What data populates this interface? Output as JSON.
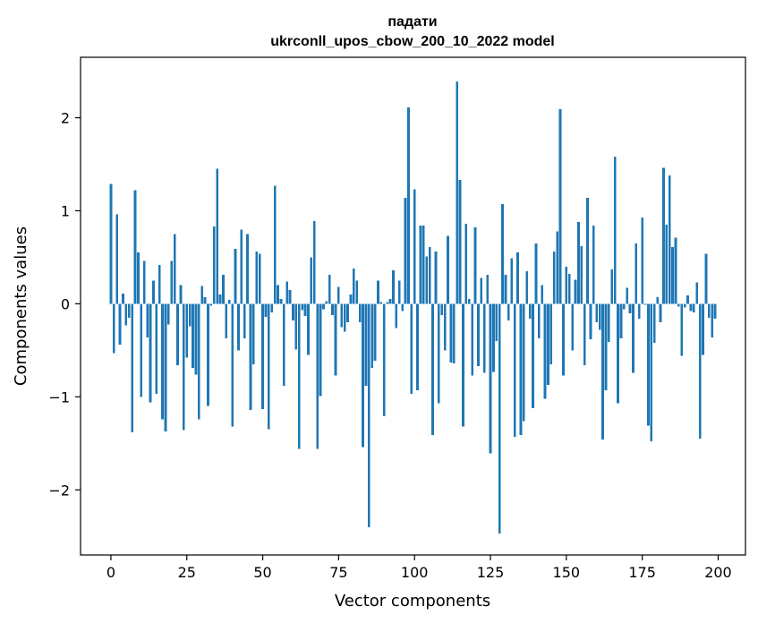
{
  "chart_data": {
    "type": "bar",
    "title": "падати",
    "subtitle": "ukrconll_upos_cbow_200_10_2022 model",
    "xlabel": "Vector components",
    "ylabel": "Components values",
    "xlim": [
      -10,
      209
    ],
    "ylim": [
      -2.7,
      2.65
    ],
    "xticks": [
      0,
      25,
      50,
      75,
      100,
      125,
      150,
      175,
      200
    ],
    "xtick_labels": [
      "0",
      "25",
      "50",
      "75",
      "100",
      "125",
      "150",
      "175",
      "200"
    ],
    "yticks": [
      -2,
      -1,
      0,
      1,
      2
    ],
    "ytick_labels": [
      "−2",
      "−1",
      "0",
      "1",
      "2"
    ],
    "grid": false,
    "bar_color": "#1f77b4",
    "x": [
      0,
      1,
      2,
      3,
      4,
      5,
      6,
      7,
      8,
      9,
      10,
      11,
      12,
      13,
      14,
      15,
      16,
      17,
      18,
      19,
      20,
      21,
      22,
      23,
      24,
      25,
      26,
      27,
      28,
      29,
      30,
      31,
      32,
      33,
      34,
      35,
      36,
      37,
      38,
      39,
      40,
      41,
      42,
      43,
      44,
      45,
      46,
      47,
      48,
      49,
      50,
      51,
      52,
      53,
      54,
      55,
      56,
      57,
      58,
      59,
      60,
      61,
      62,
      63,
      64,
      65,
      66,
      67,
      68,
      69,
      70,
      71,
      72,
      73,
      74,
      75,
      76,
      77,
      78,
      79,
      80,
      81,
      82,
      83,
      84,
      85,
      86,
      87,
      88,
      89,
      90,
      91,
      92,
      93,
      94,
      95,
      96,
      97,
      98,
      99,
      100,
      101,
      102,
      103,
      104,
      105,
      106,
      107,
      108,
      109,
      110,
      111,
      112,
      113,
      114,
      115,
      116,
      117,
      118,
      119,
      120,
      121,
      122,
      123,
      124,
      125,
      126,
      127,
      128,
      129,
      130,
      131,
      132,
      133,
      134,
      135,
      136,
      137,
      138,
      139,
      140,
      141,
      142,
      143,
      144,
      145,
      146,
      147,
      148,
      149,
      150,
      151,
      152,
      153,
      154,
      155,
      156,
      157,
      158,
      159,
      160,
      161,
      162,
      163,
      164,
      165,
      166,
      167,
      168,
      169,
      170,
      171,
      172,
      173,
      174,
      175,
      176,
      177,
      178,
      179,
      180,
      181,
      182,
      183,
      184,
      185,
      186,
      187,
      188,
      189,
      190,
      191,
      192,
      193,
      194,
      195,
      196,
      197,
      198,
      199
    ],
    "values": [
      1.29,
      -0.53,
      0.96,
      -0.44,
      0.11,
      -0.23,
      -0.15,
      -1.38,
      1.22,
      0.55,
      -1.0,
      0.46,
      -0.36,
      -1.06,
      0.25,
      -0.97,
      0.42,
      -1.24,
      -1.37,
      -0.22,
      0.46,
      0.75,
      -0.66,
      0.2,
      -1.36,
      -0.58,
      -0.24,
      -0.69,
      -0.76,
      -1.24,
      0.19,
      0.07,
      -1.1,
      -0.02,
      0.83,
      1.45,
      0.1,
      0.31,
      -0.37,
      0.04,
      -1.32,
      0.59,
      -0.5,
      0.8,
      -0.37,
      0.75,
      -1.14,
      -0.65,
      0.56,
      0.54,
      -1.13,
      -0.14,
      -1.35,
      -0.09,
      1.27,
      0.2,
      0.05,
      -0.88,
      0.24,
      0.15,
      -0.18,
      -0.49,
      -1.56,
      -0.07,
      -0.13,
      -0.55,
      0.5,
      0.89,
      -1.56,
      -0.99,
      -0.06,
      0.03,
      0.31,
      -0.12,
      -0.77,
      0.18,
      -0.25,
      -0.3,
      -0.2,
      0.1,
      0.38,
      0.25,
      -0.2,
      -1.54,
      -0.88,
      -2.4,
      -0.69,
      -0.61,
      0.25,
      0.02,
      -1.21,
      0.02,
      0.05,
      0.36,
      -0.26,
      0.25,
      -0.08,
      1.14,
      2.11,
      -0.97,
      1.23,
      -0.93,
      0.84,
      0.84,
      0.51,
      0.61,
      -1.41,
      0.56,
      -1.07,
      -0.12,
      -0.5,
      0.73,
      -0.63,
      -0.64,
      2.39,
      1.33,
      -1.32,
      0.86,
      0.05,
      -0.77,
      0.82,
      -0.67,
      0.28,
      -0.74,
      0.31,
      -1.61,
      -0.73,
      -0.4,
      -2.47,
      1.07,
      0.31,
      -0.18,
      0.49,
      -1.43,
      0.55,
      -1.41,
      -1.26,
      0.35,
      -0.16,
      -1.12,
      0.65,
      -0.37,
      0.2,
      -1.02,
      -0.87,
      -0.65,
      0.56,
      0.78,
      2.09,
      -0.77,
      0.4,
      0.32,
      -0.5,
      0.26,
      0.88,
      0.62,
      -0.66,
      1.14,
      -0.38,
      0.84,
      -0.2,
      -0.28,
      -1.46,
      -0.93,
      -0.41,
      0.37,
      1.58,
      -1.07,
      -0.37,
      -0.06,
      0.17,
      -0.1,
      -0.74,
      0.65,
      -0.16,
      0.93,
      -0.01,
      -1.31,
      -1.48,
      -0.42,
      0.07,
      -0.2,
      1.46,
      0.85,
      1.38,
      0.61,
      0.71,
      -0.03,
      -0.56,
      -0.04,
      0.09,
      -0.08,
      -0.09,
      0.23,
      -1.45,
      -0.55,
      0.54,
      -0.15,
      -0.36,
      -0.16
    ]
  }
}
